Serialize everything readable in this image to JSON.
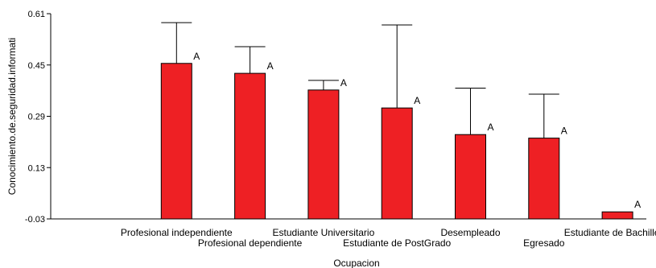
{
  "chart_data": {
    "type": "bar",
    "xlabel": "Ocupacion",
    "ylabel": "Conocimiento.de.seguridad.informati",
    "ylim": [
      -0.03,
      0.61
    ],
    "yticks": [
      "-0.03",
      "0.13",
      "0.29",
      "0.45",
      "0.61"
    ],
    "bar_color": "#ee2024",
    "categories": [
      "Profesional independiente",
      "Profesional dependiente",
      "Estudiante Universitario",
      "Estudiante de PostGrado",
      "Desempleado",
      "Egresado",
      "Estudiante de Bachillerat"
    ],
    "values": [
      0.455,
      0.424,
      0.372,
      0.316,
      0.233,
      0.222,
      -0.008
    ],
    "error_upper": [
      0.582,
      0.507,
      0.402,
      0.575,
      0.378,
      0.359,
      -0.008
    ],
    "group_letters": [
      "A",
      "A",
      "A",
      "A",
      "A",
      "A",
      "A"
    ]
  }
}
